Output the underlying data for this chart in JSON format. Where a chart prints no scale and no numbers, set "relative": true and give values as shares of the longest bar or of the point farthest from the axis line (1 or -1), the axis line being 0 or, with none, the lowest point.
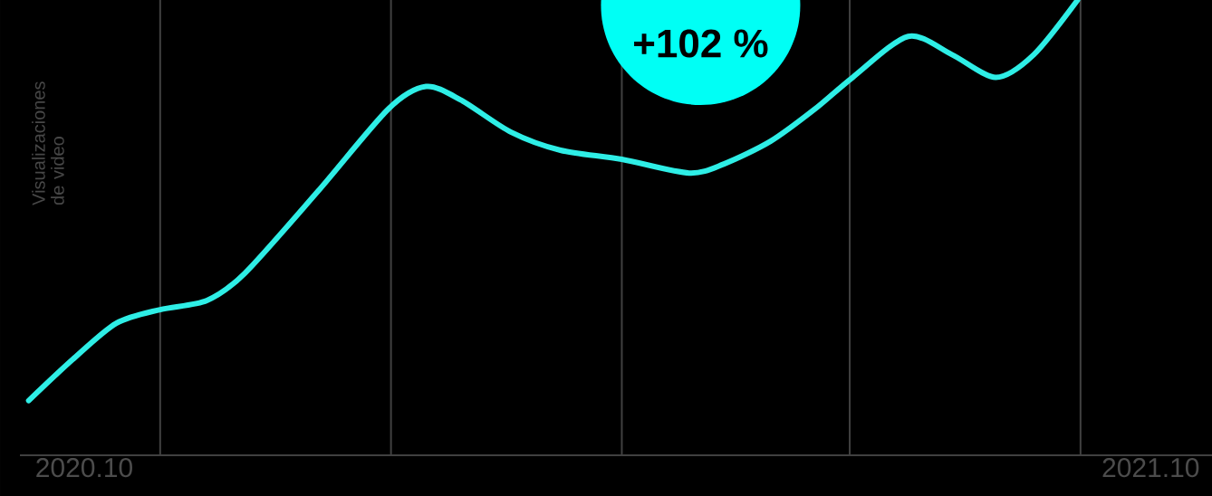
{
  "chart_data": {
    "type": "line",
    "relative": true,
    "ylabel": "Visualizaciones de video",
    "annotations": [
      "+102 %"
    ],
    "x": [
      "2020-09-12",
      "2020-09-27",
      "2020-10-12",
      "2020-10-27",
      "2020-11-12",
      "2020-11-25",
      "2020-12-20",
      "2021-01-13",
      "2021-01-26",
      "2021-02-07",
      "2021-02-24",
      "2021-03-13",
      "2021-04-03",
      "2021-04-26",
      "2021-05-08",
      "2021-05-24",
      "2021-06-08",
      "2021-06-21",
      "2021-07-10",
      "2021-07-25",
      "2021-08-09",
      "2021-08-22",
      "2021-09-06"
    ],
    "xlim": [
      "2020-09-09",
      "2021-10-22"
    ],
    "xticks": [
      {
        "value": "2020-10-01",
        "label": "2020.10"
      },
      {
        "value": "2020-10-27",
        "label": null
      },
      {
        "value": "2021-01-14",
        "label": null
      },
      {
        "value": "2021-04-03",
        "label": null
      },
      {
        "value": "2021-06-20",
        "label": null
      },
      {
        "value": "2021-09-07",
        "label": null
      },
      {
        "value": "2021-10-01",
        "label": "2021.10"
      }
    ],
    "grid": "x",
    "series": [
      {
        "color": "#2eeee6",
        "values": [
          0.12,
          0.21,
          0.29,
          0.32,
          0.34,
          0.4,
          0.58,
          0.76,
          0.81,
          0.78,
          0.71,
          0.67,
          0.65,
          0.62,
          0.64,
          0.69,
          0.76,
          0.83,
          0.92,
          0.88,
          0.83,
          0.88,
          1.0
        ]
      }
    ]
  }
}
